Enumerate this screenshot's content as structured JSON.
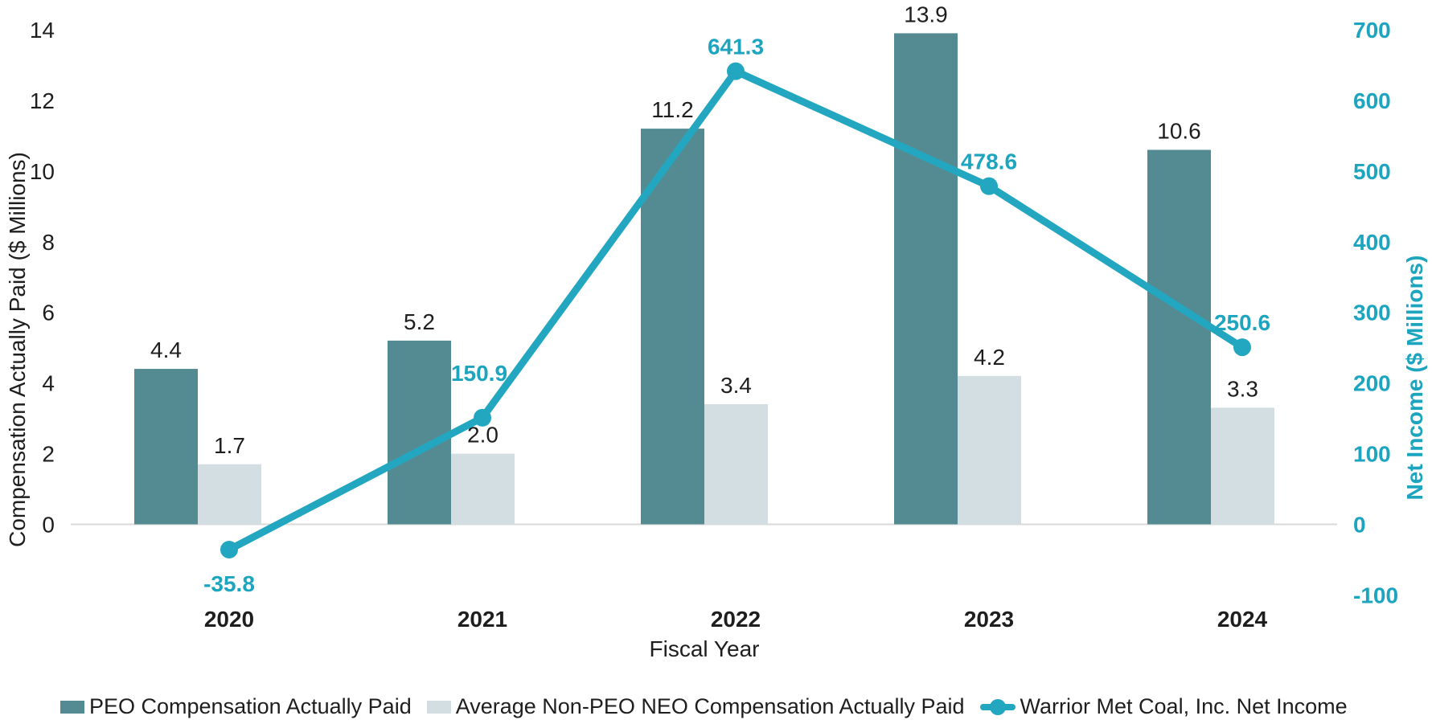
{
  "chart_data": {
    "type": "bar+line",
    "title": "",
    "categories": [
      "2020",
      "2021",
      "2022",
      "2023",
      "2024"
    ],
    "series": [
      {
        "name": "PEO Compensation Actually Paid",
        "type": "bar",
        "axis": "left",
        "color": "#548b93",
        "values": [
          4.4,
          5.2,
          11.2,
          13.9,
          10.6
        ],
        "labels": [
          "4.4",
          "5.2",
          "11.2",
          "13.9",
          "10.6"
        ]
      },
      {
        "name": "Average Non-PEO NEO Compensation Actually Paid",
        "type": "bar",
        "axis": "left",
        "color": "#d2dee2",
        "values": [
          1.7,
          2.0,
          3.4,
          4.2,
          3.3
        ],
        "labels": [
          "1.7",
          "2.0",
          "3.4",
          "4.2",
          "3.3"
        ]
      },
      {
        "name": "Warrior Met Coal, Inc. Net Income",
        "type": "line",
        "axis": "right",
        "color": "#23a7c1",
        "values": [
          -35.8,
          150.9,
          641.3,
          478.6,
          250.6
        ],
        "labels": [
          "-35.8",
          "150.9",
          "641.3",
          "478.6",
          "250.6"
        ]
      }
    ],
    "xlabel": "Fiscal Year",
    "ylabel_left": "Compensation Actually Paid ($ Millions)",
    "ylabel_right": "Net Income ($ Millions)",
    "left_axis": {
      "ticks": [
        0,
        2,
        4,
        6,
        8,
        10,
        12,
        14
      ],
      "range": [
        0,
        14
      ]
    },
    "right_axis": {
      "ticks": [
        -100,
        0,
        100,
        200,
        300,
        400,
        500,
        600,
        700
      ],
      "range": [
        -100,
        700
      ]
    },
    "grid": "baseline only",
    "legend_position": "bottom",
    "baseline_color": "#d9d9d9",
    "label_color_bars": "#1e1e1e",
    "label_color_line": "#1da5bf"
  }
}
